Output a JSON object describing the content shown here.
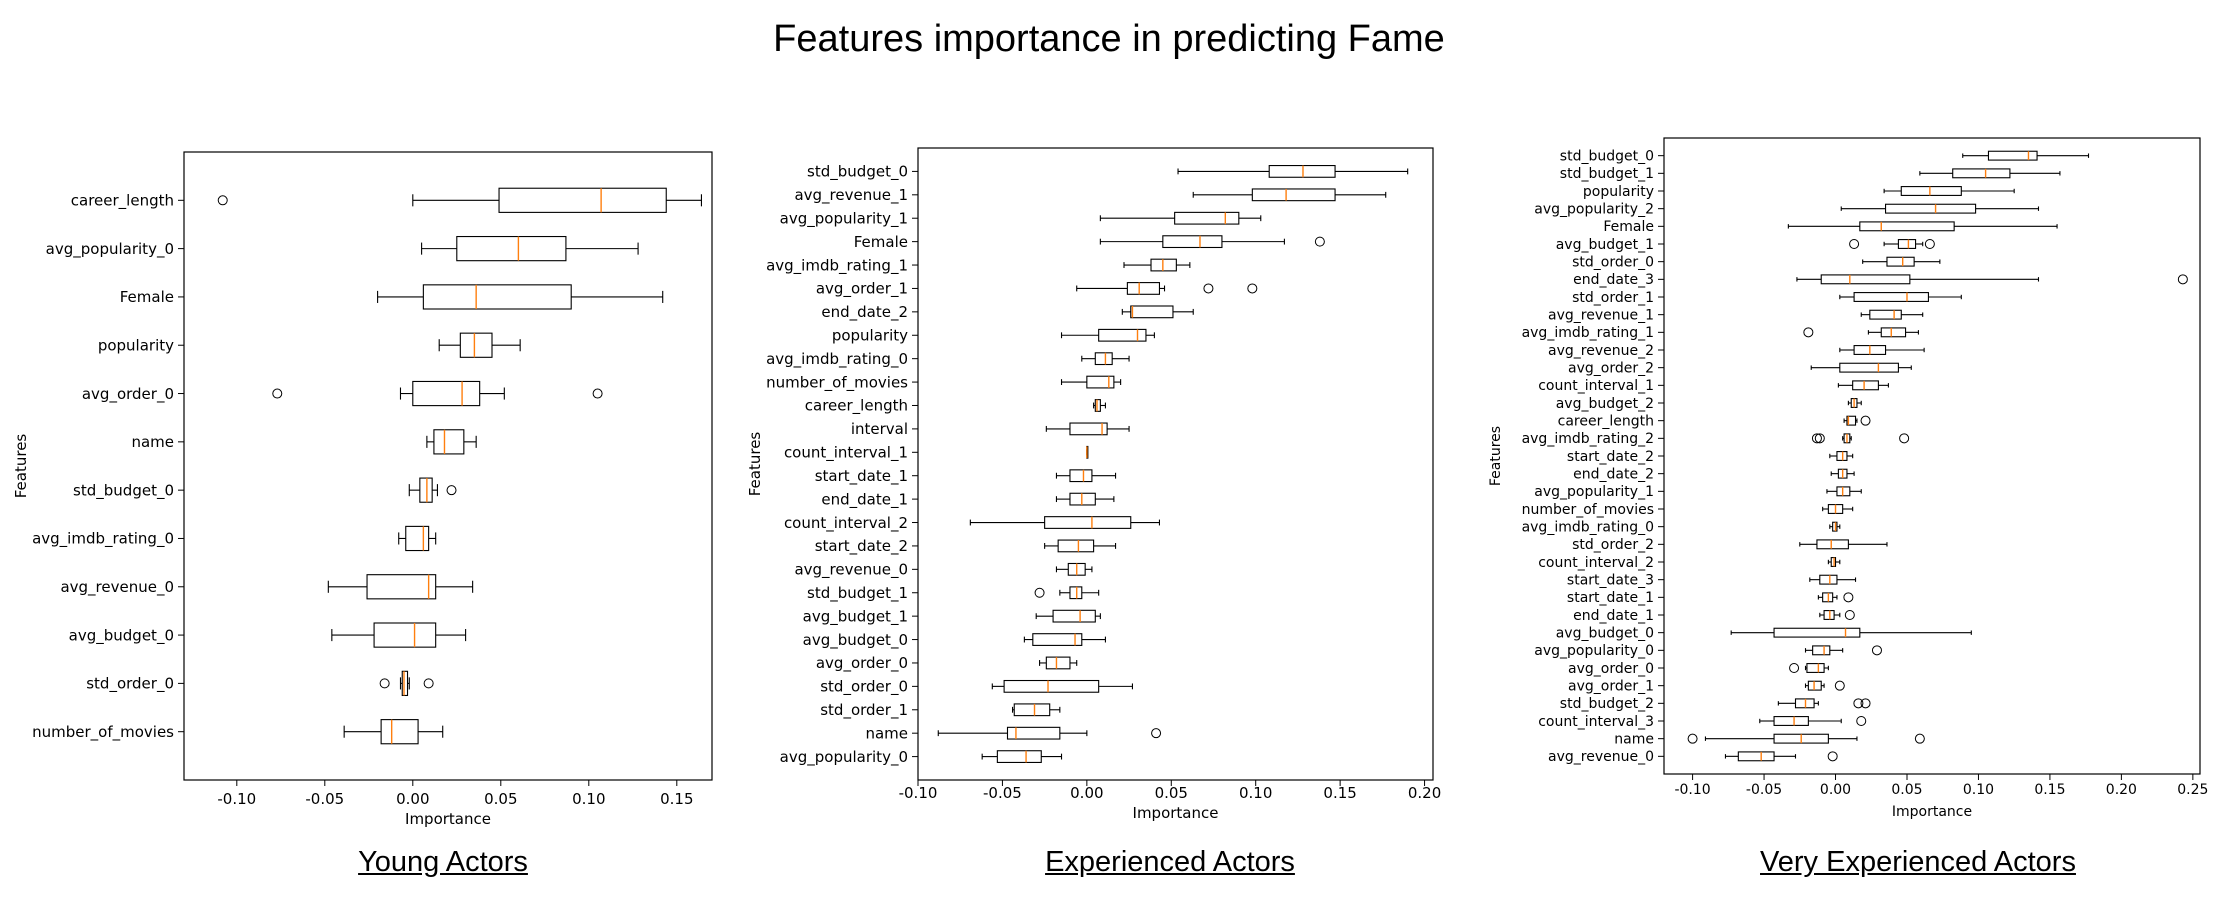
{
  "title": "Features importance in predicting Fame",
  "colors": {
    "median": "#ff7f0e",
    "box": "#000000",
    "background": "#ffffff"
  },
  "chart_data": [
    {
      "type": "boxplot",
      "caption": "Young Actors",
      "xlabel": "Importance",
      "ylabel": "Features",
      "xlim": [
        -0.13,
        0.17
      ],
      "xticks": [
        -0.1,
        -0.05,
        0.0,
        0.05,
        0.1,
        0.15
      ],
      "xtick_labels": [
        "-0.10",
        "-0.05",
        "0.00",
        "0.05",
        "0.10",
        "0.15"
      ],
      "grid": false,
      "features": [
        {
          "name": "career_length",
          "whislo": 0.0,
          "q1": 0.049,
          "med": 0.107,
          "q3": 0.144,
          "whishi": 0.164,
          "fliers": [
            -0.108
          ]
        },
        {
          "name": "avg_popularity_0",
          "whislo": 0.005,
          "q1": 0.025,
          "med": 0.06,
          "q3": 0.087,
          "whishi": 0.128,
          "fliers": []
        },
        {
          "name": "Female",
          "whislo": -0.02,
          "q1": 0.006,
          "med": 0.036,
          "q3": 0.09,
          "whishi": 0.142,
          "fliers": []
        },
        {
          "name": "popularity",
          "whislo": 0.015,
          "q1": 0.027,
          "med": 0.035,
          "q3": 0.045,
          "whishi": 0.061,
          "fliers": []
        },
        {
          "name": "avg_order_0",
          "whislo": -0.007,
          "q1": 0.0,
          "med": 0.028,
          "q3": 0.038,
          "whishi": 0.052,
          "fliers": [
            -0.077,
            0.105
          ]
        },
        {
          "name": "name",
          "whislo": 0.008,
          "q1": 0.012,
          "med": 0.018,
          "q3": 0.029,
          "whishi": 0.036,
          "fliers": []
        },
        {
          "name": "std_budget_0",
          "whislo": -0.002,
          "q1": 0.004,
          "med": 0.008,
          "q3": 0.011,
          "whishi": 0.014,
          "fliers": [
            0.022
          ]
        },
        {
          "name": "avg_imdb_rating_0",
          "whislo": -0.008,
          "q1": -0.004,
          "med": 0.006,
          "q3": 0.009,
          "whishi": 0.013,
          "fliers": []
        },
        {
          "name": "avg_revenue_0",
          "whislo": -0.048,
          "q1": -0.026,
          "med": 0.009,
          "q3": 0.013,
          "whishi": 0.034,
          "fliers": []
        },
        {
          "name": "avg_budget_0",
          "whislo": -0.046,
          "q1": -0.022,
          "med": 0.001,
          "q3": 0.013,
          "whishi": 0.03,
          "fliers": []
        },
        {
          "name": "std_order_0",
          "whislo": -0.007,
          "q1": -0.006,
          "med": -0.005,
          "q3": -0.003,
          "whishi": -0.002,
          "fliers": [
            -0.016,
            0.009
          ]
        },
        {
          "name": "number_of_movies",
          "whislo": -0.039,
          "q1": -0.018,
          "med": -0.012,
          "q3": 0.003,
          "whishi": 0.017,
          "fliers": []
        }
      ]
    },
    {
      "type": "boxplot",
      "caption": "Experienced Actors",
      "xlabel": "Importance",
      "ylabel": "Features",
      "xlim": [
        -0.1,
        0.205
      ],
      "xticks": [
        -0.1,
        -0.05,
        0.0,
        0.05,
        0.1,
        0.15,
        0.2
      ],
      "xtick_labels": [
        "-0.10",
        "-0.05",
        "0.00",
        "0.05",
        "0.10",
        "0.15",
        "0.20"
      ],
      "grid": false,
      "features": [
        {
          "name": "std_budget_0",
          "whislo": 0.054,
          "q1": 0.108,
          "med": 0.128,
          "q3": 0.147,
          "whishi": 0.19,
          "fliers": []
        },
        {
          "name": "avg_revenue_1",
          "whislo": 0.063,
          "q1": 0.098,
          "med": 0.118,
          "q3": 0.147,
          "whishi": 0.177,
          "fliers": []
        },
        {
          "name": "avg_popularity_1",
          "whislo": 0.008,
          "q1": 0.052,
          "med": 0.082,
          "q3": 0.09,
          "whishi": 0.103,
          "fliers": []
        },
        {
          "name": "Female",
          "whislo": 0.008,
          "q1": 0.045,
          "med": 0.067,
          "q3": 0.08,
          "whishi": 0.117,
          "fliers": [
            0.138
          ]
        },
        {
          "name": "avg_imdb_rating_1",
          "whislo": 0.022,
          "q1": 0.038,
          "med": 0.045,
          "q3": 0.053,
          "whishi": 0.061,
          "fliers": []
        },
        {
          "name": "avg_order_1",
          "whislo": -0.006,
          "q1": 0.024,
          "med": 0.031,
          "q3": 0.043,
          "whishi": 0.046,
          "fliers": [
            0.072,
            0.098
          ]
        },
        {
          "name": "end_date_2",
          "whislo": 0.021,
          "q1": 0.026,
          "med": 0.027,
          "q3": 0.051,
          "whishi": 0.063,
          "fliers": []
        },
        {
          "name": "popularity",
          "whislo": -0.015,
          "q1": 0.007,
          "med": 0.03,
          "q3": 0.035,
          "whishi": 0.04,
          "fliers": []
        },
        {
          "name": "avg_imdb_rating_0",
          "whislo": -0.003,
          "q1": 0.005,
          "med": 0.011,
          "q3": 0.015,
          "whishi": 0.025,
          "fliers": []
        },
        {
          "name": "number_of_movies",
          "whislo": -0.015,
          "q1": 0.0,
          "med": 0.013,
          "q3": 0.016,
          "whishi": 0.02,
          "fliers": []
        },
        {
          "name": "career_length",
          "whislo": 0.004,
          "q1": 0.005,
          "med": 0.006,
          "q3": 0.008,
          "whishi": 0.011,
          "fliers": []
        },
        {
          "name": "interval",
          "whislo": -0.024,
          "q1": -0.01,
          "med": 0.009,
          "q3": 0.012,
          "whishi": 0.025,
          "fliers": []
        },
        {
          "name": "count_interval_1",
          "whislo": 0.0,
          "q1": 0.0,
          "med": 0.0,
          "q3": 0.0,
          "whishi": 0.0,
          "fliers": []
        },
        {
          "name": "start_date_1",
          "whislo": -0.018,
          "q1": -0.01,
          "med": -0.002,
          "q3": 0.003,
          "whishi": 0.017,
          "fliers": []
        },
        {
          "name": "end_date_1",
          "whislo": -0.018,
          "q1": -0.01,
          "med": -0.003,
          "q3": 0.005,
          "whishi": 0.016,
          "fliers": []
        },
        {
          "name": "count_interval_2",
          "whislo": -0.069,
          "q1": -0.025,
          "med": 0.003,
          "q3": 0.026,
          "whishi": 0.043,
          "fliers": []
        },
        {
          "name": "start_date_2",
          "whislo": -0.025,
          "q1": -0.017,
          "med": -0.005,
          "q3": 0.004,
          "whishi": 0.017,
          "fliers": []
        },
        {
          "name": "avg_revenue_0",
          "whislo": -0.018,
          "q1": -0.011,
          "med": -0.006,
          "q3": -0.001,
          "whishi": 0.003,
          "fliers": []
        },
        {
          "name": "std_budget_1",
          "whislo": -0.016,
          "q1": -0.01,
          "med": -0.006,
          "q3": -0.003,
          "whishi": 0.007,
          "fliers": [
            -0.028
          ]
        },
        {
          "name": "avg_budget_1",
          "whislo": -0.03,
          "q1": -0.02,
          "med": -0.004,
          "q3": 0.005,
          "whishi": 0.008,
          "fliers": []
        },
        {
          "name": "avg_budget_0",
          "whislo": -0.037,
          "q1": -0.032,
          "med": -0.007,
          "q3": -0.003,
          "whishi": 0.011,
          "fliers": []
        },
        {
          "name": "avg_order_0",
          "whislo": -0.028,
          "q1": -0.024,
          "med": -0.018,
          "q3": -0.01,
          "whishi": -0.006,
          "fliers": []
        },
        {
          "name": "std_order_0",
          "whislo": -0.056,
          "q1": -0.049,
          "med": -0.023,
          "q3": 0.007,
          "whishi": 0.027,
          "fliers": []
        },
        {
          "name": "std_order_1",
          "whislo": -0.044,
          "q1": -0.043,
          "med": -0.031,
          "q3": -0.022,
          "whishi": -0.016,
          "fliers": []
        },
        {
          "name": "name",
          "whislo": -0.088,
          "q1": -0.047,
          "med": -0.042,
          "q3": -0.016,
          "whishi": 0.0,
          "fliers": [
            0.041
          ]
        },
        {
          "name": "avg_popularity_0",
          "whislo": -0.062,
          "q1": -0.053,
          "med": -0.036,
          "q3": -0.027,
          "whishi": -0.015,
          "fliers": []
        }
      ]
    },
    {
      "type": "boxplot",
      "caption": "Very Experienced Actors",
      "xlabel": "Importance",
      "ylabel": "Features",
      "xlim": [
        -0.12,
        0.255
      ],
      "xticks": [
        -0.1,
        -0.05,
        0.0,
        0.05,
        0.1,
        0.15,
        0.2,
        0.25
      ],
      "xtick_labels": [
        "-0.10",
        "-0.05",
        "0.00",
        "0.05",
        "0.10",
        "0.15",
        "0.20",
        "0.25"
      ],
      "grid": false,
      "features": [
        {
          "name": "std_budget_0",
          "whislo": 0.089,
          "q1": 0.107,
          "med": 0.135,
          "q3": 0.141,
          "whishi": 0.177,
          "fliers": []
        },
        {
          "name": "std_budget_1",
          "whislo": 0.059,
          "q1": 0.082,
          "med": 0.105,
          "q3": 0.122,
          "whishi": 0.157,
          "fliers": []
        },
        {
          "name": "popularity",
          "whislo": 0.034,
          "q1": 0.046,
          "med": 0.066,
          "q3": 0.088,
          "whishi": 0.125,
          "fliers": []
        },
        {
          "name": "avg_popularity_2",
          "whislo": 0.004,
          "q1": 0.035,
          "med": 0.07,
          "q3": 0.098,
          "whishi": 0.142,
          "fliers": []
        },
        {
          "name": "Female",
          "whislo": -0.033,
          "q1": 0.017,
          "med": 0.032,
          "q3": 0.083,
          "whishi": 0.155,
          "fliers": []
        },
        {
          "name": "avg_budget_1",
          "whislo": 0.034,
          "q1": 0.044,
          "med": 0.051,
          "q3": 0.056,
          "whishi": 0.061,
          "fliers": [
            0.013,
            0.066
          ]
        },
        {
          "name": "std_order_0",
          "whislo": 0.019,
          "q1": 0.036,
          "med": 0.047,
          "q3": 0.055,
          "whishi": 0.073,
          "fliers": []
        },
        {
          "name": "end_date_3",
          "whislo": -0.027,
          "q1": -0.01,
          "med": 0.01,
          "q3": 0.052,
          "whishi": 0.142,
          "fliers": [
            0.243
          ]
        },
        {
          "name": "std_order_1",
          "whislo": 0.003,
          "q1": 0.013,
          "med": 0.05,
          "q3": 0.065,
          "whishi": 0.088,
          "fliers": []
        },
        {
          "name": "avg_revenue_1",
          "whislo": 0.018,
          "q1": 0.024,
          "med": 0.041,
          "q3": 0.046,
          "whishi": 0.061,
          "fliers": []
        },
        {
          "name": "avg_imdb_rating_1",
          "whislo": 0.023,
          "q1": 0.032,
          "med": 0.039,
          "q3": 0.049,
          "whishi": 0.058,
          "fliers": [
            -0.019
          ]
        },
        {
          "name": "avg_revenue_2",
          "whislo": 0.003,
          "q1": 0.013,
          "med": 0.024,
          "q3": 0.035,
          "whishi": 0.062,
          "fliers": []
        },
        {
          "name": "avg_order_2",
          "whislo": -0.017,
          "q1": 0.003,
          "med": 0.03,
          "q3": 0.044,
          "whishi": 0.053,
          "fliers": []
        },
        {
          "name": "count_interval_1",
          "whislo": 0.002,
          "q1": 0.012,
          "med": 0.02,
          "q3": 0.03,
          "whishi": 0.037,
          "fliers": []
        },
        {
          "name": "avg_budget_2",
          "whislo": 0.009,
          "q1": 0.011,
          "med": 0.013,
          "q3": 0.015,
          "whishi": 0.018,
          "fliers": []
        },
        {
          "name": "career_length",
          "whislo": 0.006,
          "q1": 0.008,
          "med": 0.009,
          "q3": 0.014,
          "whishi": 0.015,
          "fliers": [
            0.021
          ]
        },
        {
          "name": "avg_imdb_rating_2",
          "whislo": 0.005,
          "q1": 0.006,
          "med": 0.008,
          "q3": 0.01,
          "whishi": 0.011,
          "fliers": [
            -0.013,
            -0.011,
            0.048
          ]
        },
        {
          "name": "start_date_2",
          "whislo": -0.004,
          "q1": 0.001,
          "med": 0.005,
          "q3": 0.008,
          "whishi": 0.012,
          "fliers": []
        },
        {
          "name": "end_date_2",
          "whislo": -0.003,
          "q1": 0.002,
          "med": 0.005,
          "q3": 0.008,
          "whishi": 0.013,
          "fliers": []
        },
        {
          "name": "avg_popularity_1",
          "whislo": -0.006,
          "q1": 0.001,
          "med": 0.005,
          "q3": 0.01,
          "whishi": 0.018,
          "fliers": []
        },
        {
          "name": "number_of_movies",
          "whislo": -0.009,
          "q1": -0.005,
          "med": 0.0,
          "q3": 0.005,
          "whishi": 0.012,
          "fliers": []
        },
        {
          "name": "avg_imdb_rating_0",
          "whislo": -0.004,
          "q1": -0.002,
          "med": 0.0,
          "q3": 0.001,
          "whishi": 0.003,
          "fliers": []
        },
        {
          "name": "std_order_2",
          "whislo": -0.025,
          "q1": -0.013,
          "med": -0.003,
          "q3": 0.009,
          "whishi": 0.036,
          "fliers": []
        },
        {
          "name": "count_interval_2",
          "whislo": -0.005,
          "q1": -0.003,
          "med": -0.001,
          "q3": 0.0,
          "whishi": 0.003,
          "fliers": []
        },
        {
          "name": "start_date_3",
          "whislo": -0.018,
          "q1": -0.011,
          "med": -0.004,
          "q3": 0.001,
          "whishi": 0.014,
          "fliers": []
        },
        {
          "name": "start_date_1",
          "whislo": -0.012,
          "q1": -0.009,
          "med": -0.005,
          "q3": -0.002,
          "whishi": 0.001,
          "fliers": [
            0.009
          ]
        },
        {
          "name": "end_date_1",
          "whislo": -0.011,
          "q1": -0.008,
          "med": -0.004,
          "q3": -0.001,
          "whishi": 0.003,
          "fliers": [
            0.01
          ]
        },
        {
          "name": "avg_budget_0",
          "whislo": -0.073,
          "q1": -0.043,
          "med": 0.007,
          "q3": 0.017,
          "whishi": 0.095,
          "fliers": []
        },
        {
          "name": "avg_popularity_0",
          "whislo": -0.021,
          "q1": -0.016,
          "med": -0.008,
          "q3": -0.004,
          "whishi": 0.005,
          "fliers": [
            0.029
          ]
        },
        {
          "name": "avg_order_0",
          "whislo": -0.021,
          "q1": -0.02,
          "med": -0.012,
          "q3": -0.008,
          "whishi": -0.005,
          "fliers": [
            -0.029
          ]
        },
        {
          "name": "avg_order_1",
          "whislo": -0.021,
          "q1": -0.019,
          "med": -0.015,
          "q3": -0.01,
          "whishi": -0.008,
          "fliers": [
            0.003
          ]
        },
        {
          "name": "std_budget_2",
          "whislo": -0.04,
          "q1": -0.028,
          "med": -0.021,
          "q3": -0.015,
          "whishi": -0.012,
          "fliers": [
            0.016,
            0.021
          ]
        },
        {
          "name": "count_interval_3",
          "whislo": -0.053,
          "q1": -0.043,
          "med": -0.029,
          "q3": -0.019,
          "whishi": 0.004,
          "fliers": [
            0.018
          ]
        },
        {
          "name": "name",
          "whislo": -0.091,
          "q1": -0.043,
          "med": -0.024,
          "q3": -0.005,
          "whishi": 0.015,
          "fliers": [
            -0.1,
            0.059
          ]
        },
        {
          "name": "avg_revenue_0",
          "whislo": -0.077,
          "q1": -0.068,
          "med": -0.052,
          "q3": -0.043,
          "whishi": -0.028,
          "fliers": [
            -0.002
          ]
        }
      ]
    }
  ]
}
